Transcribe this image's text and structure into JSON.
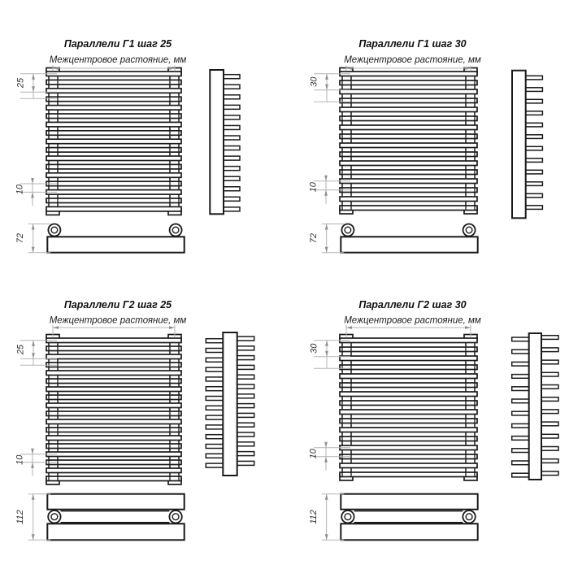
{
  "sheet": {
    "background": "#ffffff",
    "line_color": "#1a1a1a",
    "dim_line_color": "#b3b3b3",
    "dim_arrow_color": "#8f8f8f"
  },
  "common": {
    "distance_label": "Межцентровое растояние, мм",
    "units": "мм"
  },
  "drawings": [
    {
      "id": "parallels-g1-step-25",
      "title": "Параллели Г1 шаг 25",
      "variant": "Г1",
      "step_mm": 25,
      "step_label": "25",
      "gap_label": "10",
      "depth_label": "72",
      "front_bar_count": 17,
      "side_tooth_count": 14,
      "tooth_sides": "right"
    },
    {
      "id": "parallels-g1-step-30",
      "title": "Параллели Г1 шаг 30",
      "variant": "Г1",
      "step_mm": 30,
      "step_label": "30",
      "gap_label": "10",
      "depth_label": "72",
      "front_bar_count": 16,
      "side_tooth_count": 12,
      "tooth_sides": "right"
    },
    {
      "id": "parallels-g2-step-25",
      "title": "Параллели Г2 шаг 25",
      "variant": "Г2",
      "step_mm": 25,
      "step_label": "25",
      "gap_label": "10",
      "depth_label": "112",
      "front_bar_count": 18,
      "side_tooth_count": 14,
      "tooth_sides": "both"
    },
    {
      "id": "parallels-g2-step-30",
      "title": "Параллели Г2 шаг 30",
      "variant": "Г2",
      "step_mm": 30,
      "step_label": "30",
      "gap_label": "10",
      "depth_label": "112",
      "front_bar_count": 16,
      "side_tooth_count": 12,
      "tooth_sides": "both"
    }
  ]
}
